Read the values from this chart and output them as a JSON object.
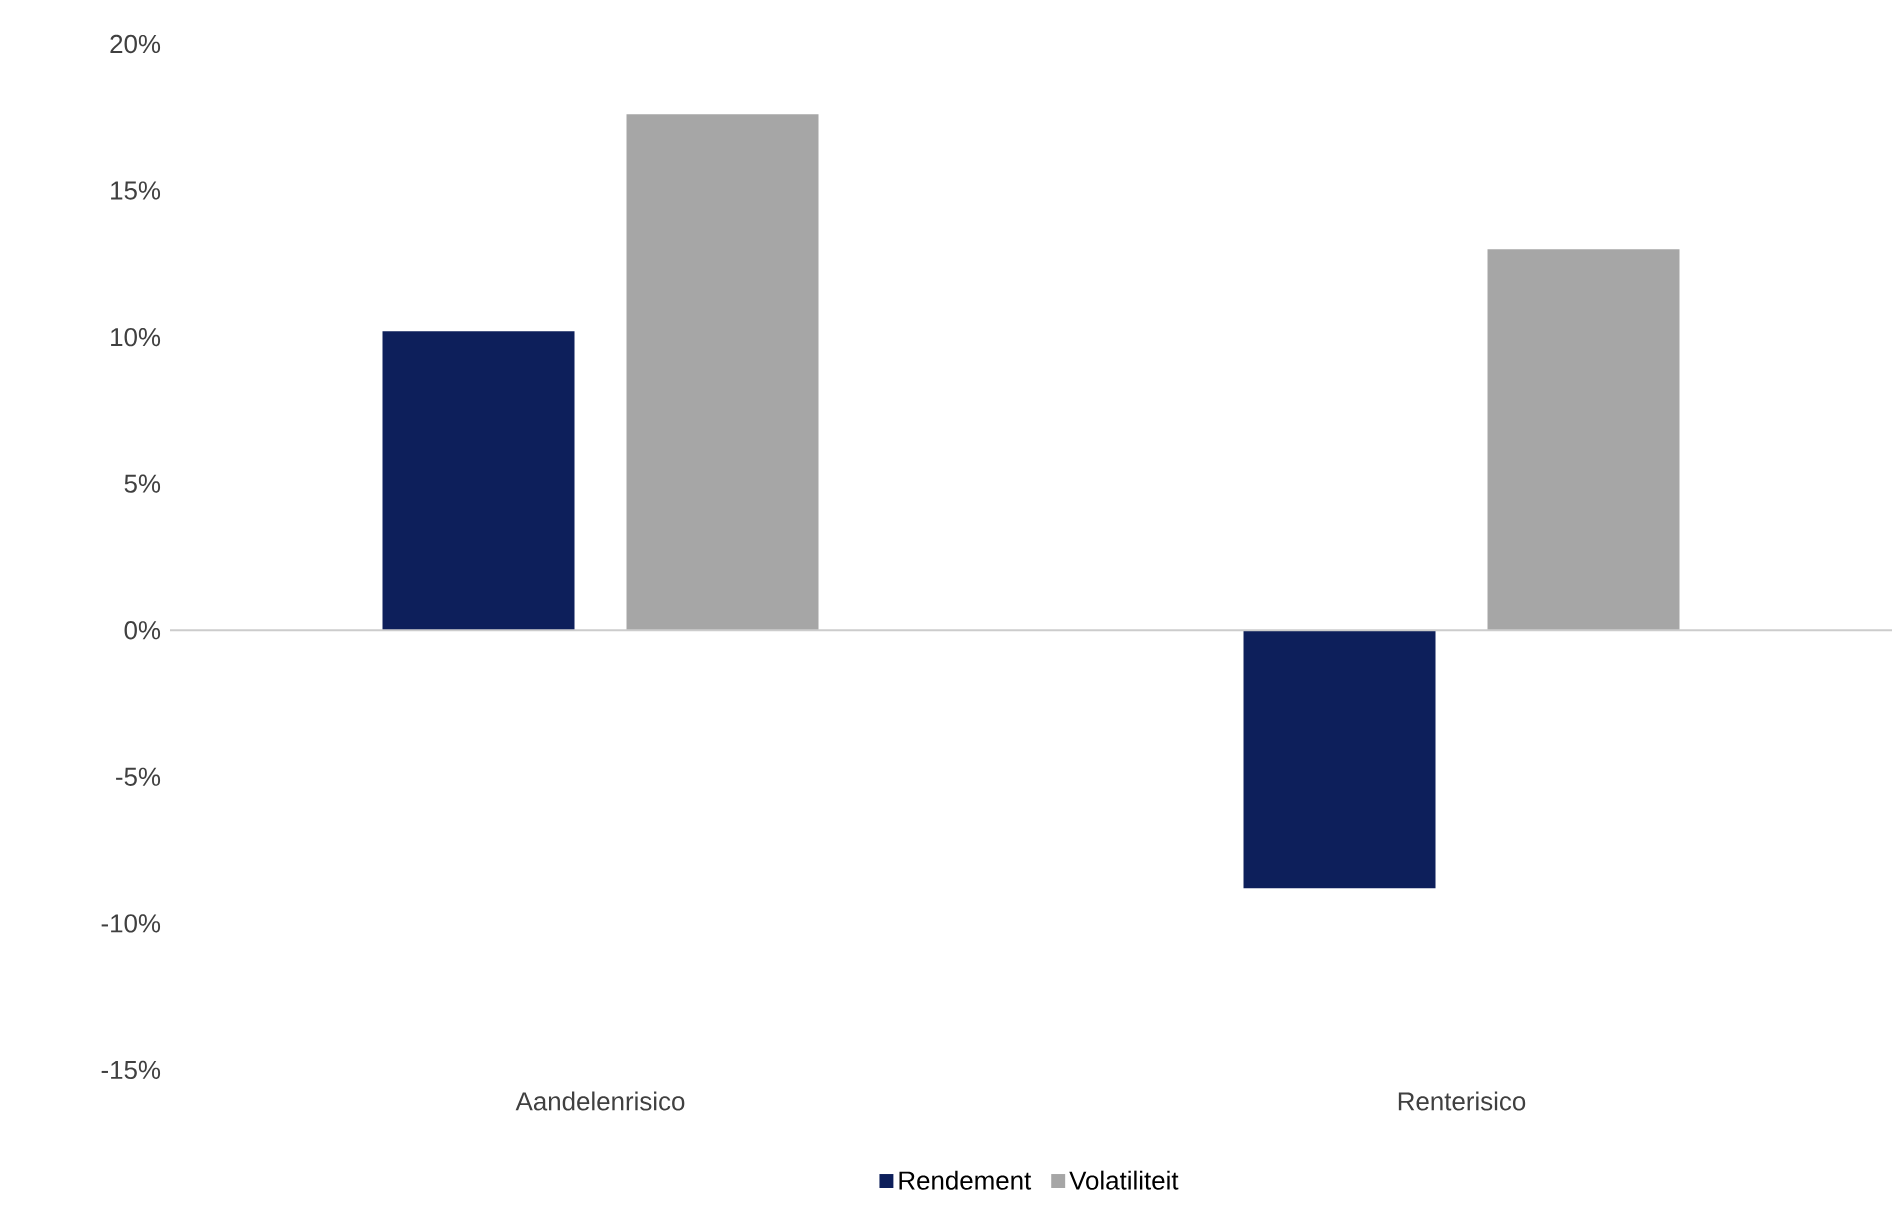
{
  "chart_data": {
    "type": "bar",
    "categories": [
      "Aandelenrisico",
      "Renterisico"
    ],
    "series": [
      {
        "name": "Rendement",
        "color": "#0d1f5b",
        "values": [
          10.2,
          -8.8
        ]
      },
      {
        "name": "Volatiliteit",
        "color": "#a6a6a6",
        "values": [
          17.6,
          13.0
        ]
      }
    ],
    "ylim": [
      -15,
      20
    ],
    "yticks": [
      {
        "value": -15,
        "label": "-15%"
      },
      {
        "value": -10,
        "label": "-10%"
      },
      {
        "value": -5,
        "label": "-5%"
      },
      {
        "value": 0,
        "label": "0%"
      },
      {
        "value": 5,
        "label": "5%"
      },
      {
        "value": 10,
        "label": "10%"
      },
      {
        "value": 15,
        "label": "15%"
      },
      {
        "value": 20,
        "label": "20%"
      }
    ],
    "legend": "bottom"
  }
}
